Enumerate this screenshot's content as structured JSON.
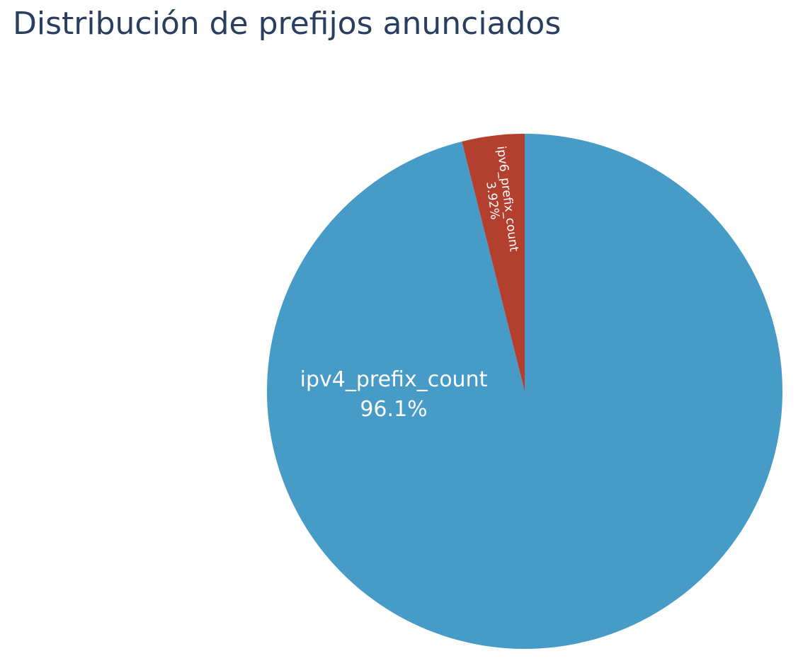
{
  "chart_data": {
    "type": "pie",
    "title": "Distribución de prefijos anunciados",
    "slices": [
      {
        "label": "ipv4_prefix_count",
        "percent_label": "96.1%",
        "value": 96.08,
        "color": "#479bc7"
      },
      {
        "label": "ipv6_prefix_count",
        "percent_label": "3.92%",
        "value": 3.92,
        "color": "#b3402e"
      }
    ],
    "direction": "clockwise",
    "start": "top",
    "legend": "none"
  }
}
